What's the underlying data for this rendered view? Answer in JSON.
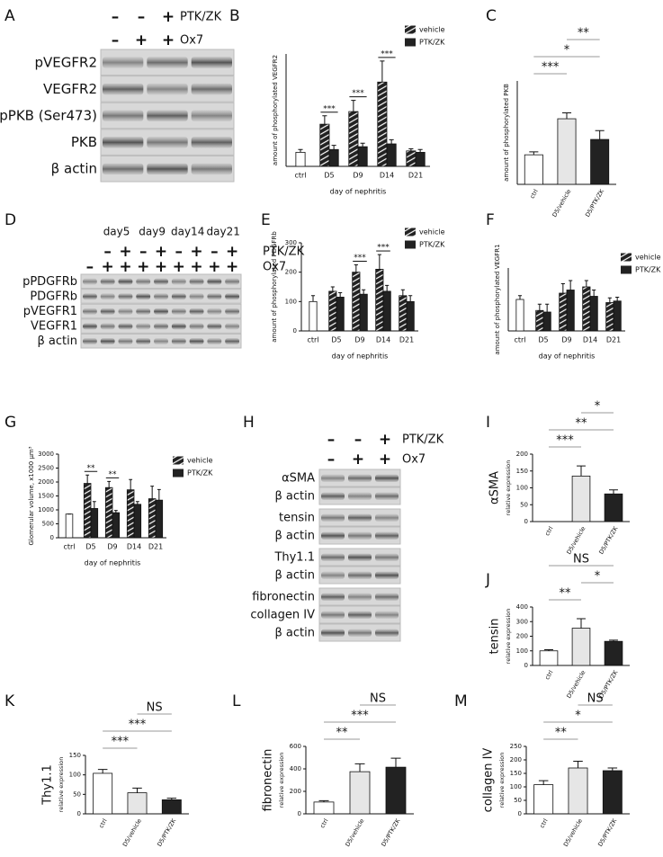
{
  "blots": [
    {
      "panel": "A",
      "signs": [
        {
          "label": "PTK/ZK",
          "marks": [
            "–",
            "–",
            "+"
          ]
        },
        {
          "label": "Ox7",
          "marks": [
            "–",
            "+",
            "+"
          ]
        }
      ],
      "rows": [
        "pVEGFR2",
        "VEGFR2",
        "pPKB (Ser473)",
        "PKB",
        "β actin"
      ]
    },
    {
      "panel": "D",
      "groups": [
        "day5",
        "day9",
        "day14",
        "day21"
      ],
      "signs": [
        {
          "label": "PTK/ZK",
          "marks": [
            null,
            "–",
            "+",
            "–",
            "+",
            "–",
            "+",
            "–",
            "+"
          ]
        },
        {
          "label": "Ox7",
          "marks": [
            "–",
            "+",
            "+",
            "+",
            "+",
            "+",
            "+",
            "+",
            "+"
          ]
        }
      ],
      "rows": [
        "pPDGFRb",
        "PDGFRb",
        "pVEGFR1",
        "VEGFR1",
        "β actin"
      ]
    },
    {
      "panel": "H",
      "signs": [
        {
          "label": "PTK/ZK",
          "marks": [
            "–",
            "–",
            "+"
          ]
        },
        {
          "label": "Ox7",
          "marks": [
            "–",
            "+",
            "+"
          ]
        }
      ],
      "rows": [
        "αSMA",
        "β actin",
        "tensin",
        "β actin",
        "Thy1.1",
        "β actin",
        "fibronectin",
        "collagen IV",
        "β actin"
      ]
    }
  ],
  "chart_data": [
    {
      "type": "bar",
      "panel": "B",
      "ylabel": "amount of phosphorylated VEGFR2",
      "xlabel": "day of nephritis",
      "categories": [
        "ctrl",
        "D5",
        "D9",
        "D14",
        "D21"
      ],
      "ylim": [
        0,
        800
      ],
      "series": [
        {
          "color": "#ffffff",
          "values": [
            100,
            null,
            null,
            null,
            null
          ],
          "errors": [
            20,
            null,
            null,
            null,
            null
          ]
        },
        {
          "name": "vehicle",
          "fill": "hatch",
          "color": "#222222",
          "values": [
            null,
            300,
            390,
            600,
            110
          ],
          "errors": [
            null,
            60,
            80,
            150,
            15
          ]
        },
        {
          "name": "PTK/ZK",
          "color": "#222222",
          "values": [
            null,
            120,
            140,
            160,
            100
          ],
          "errors": [
            null,
            30,
            25,
            30,
            20
          ]
        }
      ],
      "stars": [
        {
          "category": 1,
          "text": "***"
        },
        {
          "category": 2,
          "text": "***"
        },
        {
          "category": 3,
          "text": "***"
        }
      ]
    },
    {
      "type": "bar",
      "panel": "C",
      "ylabel": "amount of phosphorylated PKB",
      "categories": [
        "ctrl",
        "D5/vehicle",
        "D5/PTK/ZK"
      ],
      "ylim": [
        0,
        350
      ],
      "values": [
        100,
        222,
        152
      ],
      "errors": [
        10,
        20,
        30
      ],
      "colors": [
        "#ffffff",
        "#e6e6e6",
        "#222222"
      ],
      "brackets": [
        {
          "from": 0,
          "to": 1,
          "text": "***"
        },
        {
          "from": 0,
          "to": 2,
          "text": "*"
        },
        {
          "from": 1,
          "to": 2,
          "text": "**"
        }
      ]
    },
    {
      "type": "bar",
      "panel": "E",
      "ylabel": "amount of phosphorylated PDGFRb",
      "xlabel": "day of nephritis",
      "categories": [
        "ctrl",
        "D5",
        "D9",
        "D14",
        "D21"
      ],
      "ylim": [
        0,
        300
      ],
      "yticks": [
        0,
        100,
        200,
        300
      ],
      "series": [
        {
          "color": "#ffffff",
          "values": [
            100,
            null,
            null,
            null,
            null
          ],
          "errors": [
            20,
            null,
            null,
            null,
            null
          ]
        },
        {
          "name": "vehicle",
          "fill": "hatch",
          "color": "#222222",
          "values": [
            null,
            135,
            200,
            210,
            120
          ],
          "errors": [
            null,
            15,
            25,
            50,
            20
          ]
        },
        {
          "name": "PTK/ZK",
          "color": "#222222",
          "values": [
            null,
            115,
            125,
            135,
            100
          ],
          "errors": [
            null,
            15,
            15,
            20,
            20
          ]
        }
      ],
      "stars": [
        {
          "category": 2,
          "text": "***"
        },
        {
          "category": 3,
          "text": "***"
        }
      ]
    },
    {
      "type": "bar",
      "panel": "F",
      "ylabel": "amount of phosphorylated VEGFR1",
      "xlabel": "day of nephritis",
      "categories": [
        "ctrl",
        "D5",
        "D9",
        "D14",
        "D21"
      ],
      "ylim": [
        0,
        200
      ],
      "series": [
        {
          "color": "#ffffff",
          "values": [
            100,
            null,
            null,
            null,
            null
          ],
          "errors": [
            12,
            null,
            null,
            null,
            null
          ]
        },
        {
          "name": "vehicle",
          "fill": "hatch",
          "color": "#222222",
          "values": [
            null,
            65,
            120,
            140,
            90
          ],
          "errors": [
            null,
            20,
            30,
            20,
            15
          ]
        },
        {
          "name": "PTK/ZK",
          "color": "#222222",
          "values": [
            null,
            60,
            130,
            110,
            95
          ],
          "errors": [
            null,
            25,
            30,
            20,
            12
          ]
        }
      ]
    },
    {
      "type": "bar",
      "panel": "G",
      "ylabel": "Glomerular volume, x1000 µm³",
      "xlabel": "day of nephritis",
      "categories": [
        "ctrl",
        "D5",
        "D9",
        "D14",
        "D21"
      ],
      "ylim": [
        0,
        3000
      ],
      "yticks": [
        0,
        500,
        1000,
        1500,
        2000,
        2500,
        3000
      ],
      "series": [
        {
          "color": "#ffffff",
          "values": [
            850,
            null,
            null,
            null,
            null
          ],
          "errors": [
            0,
            null,
            null,
            null,
            null
          ]
        },
        {
          "name": "vehicle",
          "fill": "hatch",
          "color": "#222222",
          "values": [
            null,
            1950,
            1800,
            1720,
            1400
          ],
          "errors": [
            null,
            300,
            220,
            370,
            450
          ]
        },
        {
          "name": "PTK/ZK",
          "color": "#222222",
          "values": [
            null,
            1050,
            900,
            1200,
            1350
          ],
          "errors": [
            null,
            250,
            80,
            100,
            380
          ]
        }
      ],
      "stars": [
        {
          "category": 1,
          "text": "**"
        },
        {
          "category": 2,
          "text": "**"
        }
      ]
    },
    {
      "type": "bar",
      "panel": "I",
      "ylabel": "αSMA",
      "ylabel_sub": "relative expression",
      "categories": [
        "ctrl",
        "D5/vehicle",
        "D5/PTK/ZK"
      ],
      "ylim": [
        0,
        200
      ],
      "yticks": [
        0,
        50,
        100,
        150,
        200
      ],
      "values": [
        0,
        135,
        82
      ],
      "errors": [
        0,
        30,
        12
      ],
      "colors": [
        "#ffffff",
        "#e6e6e6",
        "#222222"
      ],
      "brackets": [
        {
          "from": 0,
          "to": 1,
          "text": "***"
        },
        {
          "from": 0,
          "to": 2,
          "text": "**"
        },
        {
          "from": 1,
          "to": 2,
          "text": "*"
        }
      ]
    },
    {
      "type": "bar",
      "panel": "J",
      "ylabel": "tensin",
      "ylabel_sub": "relative expression",
      "categories": [
        "ctrl",
        "D5/vehicle",
        "D5/PTK/ZK"
      ],
      "ylim": [
        0,
        400
      ],
      "yticks": [
        0,
        100,
        200,
        300,
        400
      ],
      "values": [
        100,
        255,
        165
      ],
      "errors": [
        8,
        65,
        8
      ],
      "colors": [
        "#ffffff",
        "#e6e6e6",
        "#222222"
      ],
      "brackets": [
        {
          "from": 0,
          "to": 1,
          "text": "**"
        },
        {
          "from": 1,
          "to": 2,
          "text": "*"
        },
        {
          "from": 0,
          "to": 2,
          "text": "NS"
        }
      ]
    },
    {
      "type": "bar",
      "panel": "K",
      "ylabel": "Thy1.1",
      "ylabel_sub": "relative expression",
      "categories": [
        "ctrl",
        "D5/vehicle",
        "D5/PTK/ZK"
      ],
      "ylim": [
        0,
        150
      ],
      "yticks": [
        0,
        50,
        100,
        150
      ],
      "values": [
        104,
        54,
        36
      ],
      "errors": [
        10,
        12,
        4
      ],
      "colors": [
        "#ffffff",
        "#e6e6e6",
        "#222222"
      ],
      "brackets": [
        {
          "from": 0,
          "to": 1,
          "text": "***"
        },
        {
          "from": 0,
          "to": 2,
          "text": "***"
        },
        {
          "from": 1,
          "to": 2,
          "text": "NS"
        }
      ]
    },
    {
      "type": "bar",
      "panel": "L",
      "ylabel": "fibronectin",
      "ylabel_sub": "relative expression",
      "categories": [
        "ctrl",
        "D5/vehicle",
        "D5/PTK/ZK"
      ],
      "ylim": [
        0,
        600
      ],
      "yticks": [
        0,
        200,
        400,
        600
      ],
      "values": [
        105,
        375,
        415
      ],
      "errors": [
        12,
        70,
        80
      ],
      "colors": [
        "#ffffff",
        "#e6e6e6",
        "#222222"
      ],
      "brackets": [
        {
          "from": 0,
          "to": 1,
          "text": "**"
        },
        {
          "from": 0,
          "to": 2,
          "text": "***"
        },
        {
          "from": 1,
          "to": 2,
          "text": "NS"
        }
      ]
    },
    {
      "type": "bar",
      "panel": "M",
      "ylabel": "collagen IV",
      "ylabel_sub": "relative expression",
      "categories": [
        "ctrl",
        "D5/vehicle",
        "D5/PTK/ZK"
      ],
      "ylim": [
        0,
        250
      ],
      "yticks": [
        0,
        50,
        100,
        150,
        200,
        250
      ],
      "values": [
        108,
        170,
        160
      ],
      "errors": [
        15,
        25,
        10
      ],
      "colors": [
        "#ffffff",
        "#e6e6e6",
        "#222222"
      ],
      "brackets": [
        {
          "from": 0,
          "to": 1,
          "text": "**"
        },
        {
          "from": 0,
          "to": 2,
          "text": "*"
        },
        {
          "from": 1,
          "to": 2,
          "text": "NS"
        }
      ]
    }
  ]
}
